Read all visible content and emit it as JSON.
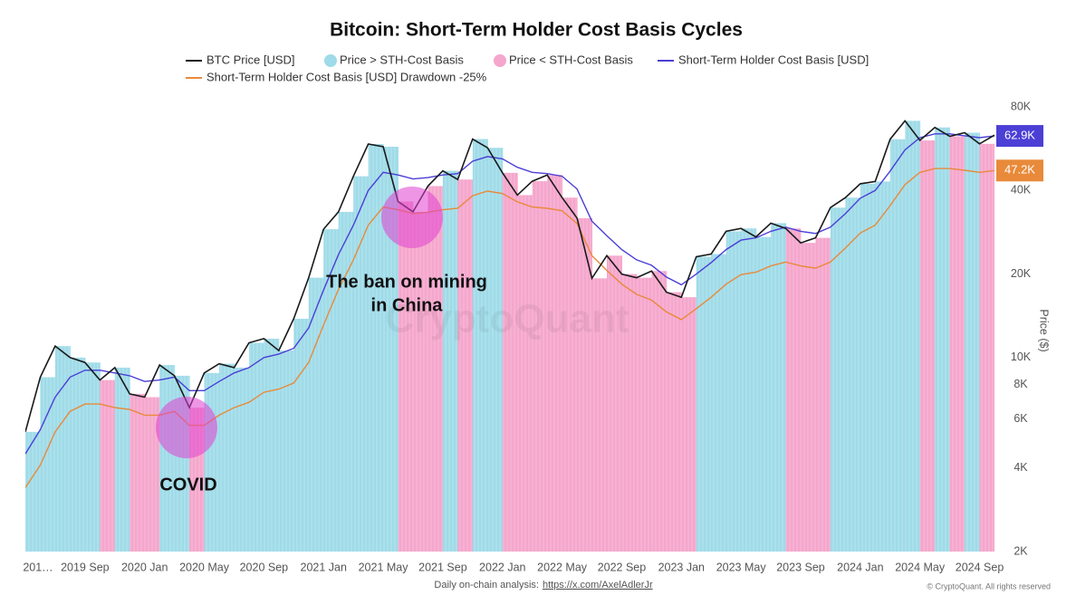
{
  "chart_data": {
    "type": "line",
    "title": "Bitcoin: Short-Term Holder Cost Basis Cycles",
    "y_label": "Price ($)",
    "log_scale": true,
    "grid": false,
    "x": [
      "2019-05",
      "2019-06",
      "2019-07",
      "2019-08",
      "2019-09",
      "2019-10",
      "2019-11",
      "2019-12",
      "2020-01",
      "2020-02",
      "2020-03",
      "2020-04",
      "2020-05",
      "2020-06",
      "2020-07",
      "2020-08",
      "2020-09",
      "2020-10",
      "2020-11",
      "2020-12",
      "2021-01",
      "2021-02",
      "2021-03",
      "2021-04",
      "2021-05",
      "2021-06",
      "2021-07",
      "2021-08",
      "2021-09",
      "2021-10",
      "2021-11",
      "2021-12",
      "2022-01",
      "2022-02",
      "2022-03",
      "2022-04",
      "2022-05",
      "2022-06",
      "2022-07",
      "2022-08",
      "2022-09",
      "2022-10",
      "2022-11",
      "2022-12",
      "2023-01",
      "2023-02",
      "2023-03",
      "2023-04",
      "2023-05",
      "2023-06",
      "2023-07",
      "2023-08",
      "2023-09",
      "2023-10",
      "2023-11",
      "2023-12",
      "2024-01",
      "2024-02",
      "2024-03",
      "2024-04",
      "2024-05",
      "2024-06",
      "2024-07",
      "2024-08",
      "2024-09",
      "2024-10"
    ],
    "series": [
      {
        "name": "BTC Price [USD]",
        "color": "#1a1a1a",
        "values": [
          5400,
          8500,
          11000,
          10000,
          9600,
          8300,
          9200,
          7400,
          7200,
          9400,
          8600,
          6600,
          8800,
          9500,
          9200,
          11300,
          11700,
          10600,
          13800,
          19400,
          29000,
          33500,
          45000,
          58800,
          57500,
          36500,
          33500,
          41500,
          47100,
          43800,
          61300,
          57000,
          46300,
          38500,
          43200,
          45500,
          37700,
          31800,
          19300,
          23300,
          20000,
          19400,
          20500,
          17200,
          16500,
          23100,
          23600,
          28500,
          29200,
          27200,
          30500,
          29200,
          25900,
          27000,
          34700,
          37700,
          42300,
          43100,
          61200,
          71300,
          60600,
          67500,
          62700,
          64600,
          58900,
          63300
        ]
      },
      {
        "name": "Short-Term Holder Cost Basis [USD]",
        "color": "#4b3fd6",
        "end_label": "62.9K",
        "values": [
          4500,
          5500,
          7200,
          8500,
          9000,
          9000,
          8800,
          8600,
          8200,
          8300,
          8500,
          7600,
          7600,
          8200,
          8800,
          9200,
          10000,
          10300,
          10800,
          12800,
          17500,
          23500,
          30000,
          40000,
          46500,
          45500,
          44000,
          44500,
          45500,
          46000,
          51000,
          53000,
          52000,
          48500,
          46500,
          46000,
          45000,
          40500,
          31000,
          27500,
          24500,
          22500,
          21500,
          19500,
          18300,
          20000,
          22000,
          24500,
          26500,
          27000,
          28500,
          29500,
          28500,
          28000,
          29500,
          33000,
          37500,
          40000,
          47000,
          56000,
          62000,
          64000,
          64000,
          63000,
          62000,
          62900
        ]
      },
      {
        "name": "Short-Term Holder Cost Basis [USD] Drawdown -25%",
        "color": "#e88a3a",
        "end_label": "47.2K",
        "values": [
          3400,
          4100,
          5400,
          6400,
          6800,
          6800,
          6600,
          6500,
          6200,
          6200,
          6400,
          5700,
          5700,
          6200,
          6600,
          6900,
          7500,
          7700,
          8100,
          9600,
          13100,
          17600,
          22500,
          30000,
          34900,
          34100,
          33000,
          33400,
          34100,
          34500,
          38300,
          39800,
          39000,
          36400,
          34900,
          34500,
          33800,
          30400,
          23300,
          20600,
          18400,
          16900,
          16100,
          14600,
          13700,
          15000,
          16500,
          18400,
          19900,
          20300,
          21400,
          22100,
          21400,
          21000,
          22100,
          24800,
          28100,
          30000,
          35300,
          42000,
          46500,
          48000,
          48000,
          47300,
          46500,
          47200
        ]
      }
    ],
    "areas": [
      {
        "name": "Price > STH-Cost Basis",
        "color": "#9fdbe8"
      },
      {
        "name": "Price < STH-Cost Basis",
        "color": "#f5a6cc"
      }
    ],
    "xlim": [
      "2019-05",
      "2024-10"
    ],
    "xticks": [
      {
        "value": "2019-05",
        "label": "201…"
      },
      {
        "value": "2019-09",
        "label": "2019 Sep"
      },
      {
        "value": "2020-01",
        "label": "2020 Jan"
      },
      {
        "value": "2020-05",
        "label": "2020 May"
      },
      {
        "value": "2020-09",
        "label": "2020 Sep"
      },
      {
        "value": "2021-01",
        "label": "2021 Jan"
      },
      {
        "value": "2021-05",
        "label": "2021 May"
      },
      {
        "value": "2021-09",
        "label": "2021 Sep"
      },
      {
        "value": "2022-01",
        "label": "2022 Jan"
      },
      {
        "value": "2022-05",
        "label": "2022 May"
      },
      {
        "value": "2022-09",
        "label": "2022 Sep"
      },
      {
        "value": "2023-01",
        "label": "2023 Jan"
      },
      {
        "value": "2023-05",
        "label": "2023 May"
      },
      {
        "value": "2023-09",
        "label": "2023 Sep"
      },
      {
        "value": "2024-01",
        "label": "2024 Jan"
      },
      {
        "value": "2024-05",
        "label": "2024 May"
      },
      {
        "value": "2024-09",
        "label": "2024 Sep"
      }
    ],
    "ylim": [
      2000,
      85000
    ],
    "yticks": [
      {
        "value": 2000,
        "label": "2K"
      },
      {
        "value": 4000,
        "label": "4K"
      },
      {
        "value": 6000,
        "label": "6K"
      },
      {
        "value": 8000,
        "label": "8K"
      },
      {
        "value": 10000,
        "label": "10K"
      },
      {
        "value": 20000,
        "label": "20K"
      },
      {
        "value": 40000,
        "label": "40K"
      },
      {
        "value": 80000,
        "label": "80K"
      }
    ],
    "annotations": [
      "The ban on mining",
      "in China",
      "COVID"
    ],
    "watermark": "CryptoQuant",
    "footer": {
      "text": "Daily on-chain analysis:",
      "link": "https://x.com/AxelAdlerJr",
      "copyright": "© CryptoQuant. All rights reserved"
    }
  }
}
